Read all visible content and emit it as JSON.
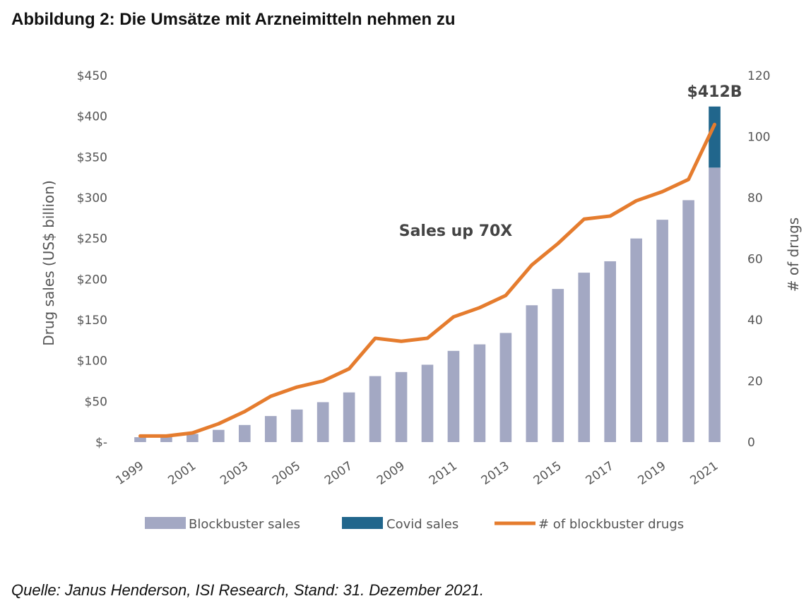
{
  "title": "Abbildung 2: Die Umsätze mit Arzneimitteln nehmen zu",
  "source": "Quelle: Janus Henderson, ISI Research, Stand: 31. Dezember 2021.",
  "chart_data": {
    "type": "bar",
    "categories": [
      "1999",
      "2000",
      "2001",
      "2002",
      "2003",
      "2004",
      "2005",
      "2006",
      "2007",
      "2008",
      "2009",
      "2010",
      "2011",
      "2012",
      "2013",
      "2014",
      "2015",
      "2016",
      "2017",
      "2018",
      "2019",
      "2020",
      "2021"
    ],
    "x_tick_labels": [
      "1999",
      "2001",
      "2003",
      "2005",
      "2007",
      "2009",
      "2011",
      "2013",
      "2015",
      "2017",
      "2019",
      "2021"
    ],
    "series": [
      {
        "name": "Blockbuster sales",
        "type": "bar",
        "axis": "left",
        "color": "#a3a8c3",
        "values": [
          6,
          8,
          10,
          15,
          21,
          32,
          40,
          49,
          61,
          81,
          86,
          95,
          112,
          120,
          134,
          168,
          188,
          208,
          222,
          250,
          273,
          297,
          337
        ]
      },
      {
        "name": "Covid sales",
        "type": "bar",
        "axis": "left",
        "stacked": true,
        "color": "#21668c",
        "values": [
          0,
          0,
          0,
          0,
          0,
          0,
          0,
          0,
          0,
          0,
          0,
          0,
          0,
          0,
          0,
          0,
          0,
          0,
          0,
          0,
          0,
          0,
          75
        ]
      },
      {
        "name": "# of blockbuster drugs",
        "type": "line",
        "axis": "right",
        "color": "#e57c2e",
        "values": [
          2,
          2,
          3,
          6,
          10,
          15,
          18,
          20,
          24,
          34,
          33,
          34,
          41,
          44,
          48,
          58,
          65,
          73,
          74,
          79,
          82,
          86,
          104
        ]
      }
    ],
    "y_left": {
      "label": "Drug sales (US$ billion)",
      "ylim": [
        0,
        450
      ],
      "ticks": [
        0,
        50,
        100,
        150,
        200,
        250,
        300,
        350,
        400,
        450
      ],
      "tick_labels": [
        "$-",
        "$50",
        "$100",
        "$150",
        "$200",
        "$250",
        "$300",
        "$350",
        "$400",
        "$450"
      ]
    },
    "y_right": {
      "label": "# of drugs",
      "ylim": [
        0,
        120
      ],
      "ticks": [
        0,
        20,
        40,
        60,
        80,
        100,
        120
      ],
      "tick_labels": [
        "0",
        "20",
        "40",
        "60",
        "80",
        "100",
        "120"
      ]
    },
    "annotations": [
      {
        "text": "$412B"
      },
      {
        "text": "Sales up 70X"
      }
    ],
    "grid": false,
    "legend_position": "bottom"
  }
}
